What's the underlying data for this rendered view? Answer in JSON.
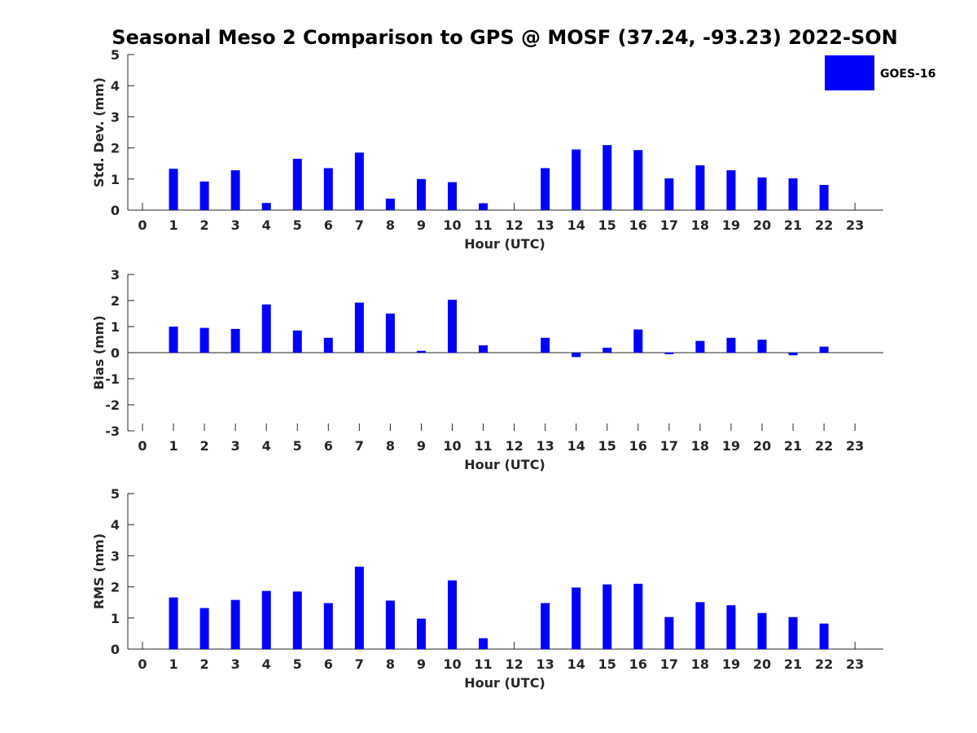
{
  "chart_data": {
    "type": "bar",
    "title": "Seasonal Meso 2 Comparison to GPS @ MOSF (37.24, -93.23) 2022-SON",
    "legend": {
      "label": "GOES-16",
      "color": "#0000ff",
      "placement": "top-right"
    },
    "categories": [
      "0",
      "1",
      "2",
      "3",
      "4",
      "5",
      "6",
      "7",
      "8",
      "9",
      "10",
      "11",
      "12",
      "13",
      "14",
      "15",
      "16",
      "17",
      "18",
      "19",
      "20",
      "21",
      "22",
      "23"
    ],
    "panels": [
      {
        "name": "std-dev",
        "ylabel": "Std. Dev. (mm)",
        "xlabel": "Hour (UTC)",
        "ylim": [
          0,
          5
        ],
        "yticks": [
          0,
          1,
          2,
          3,
          4,
          5
        ],
        "values": [
          null,
          1.33,
          0.92,
          1.28,
          0.23,
          1.65,
          1.35,
          1.85,
          0.37,
          1.0,
          0.9,
          0.22,
          null,
          1.35,
          1.95,
          2.09,
          1.93,
          1.02,
          1.44,
          1.28,
          1.05,
          1.02,
          0.81,
          null
        ]
      },
      {
        "name": "bias",
        "ylabel": "Bias (mm)",
        "xlabel": "Hour (UTC)",
        "ylim": [
          -3,
          3
        ],
        "yticks": [
          -3,
          -2,
          -1,
          0,
          1,
          2,
          3
        ],
        "values": [
          null,
          1.0,
          0.95,
          0.91,
          1.85,
          0.85,
          0.57,
          1.92,
          1.5,
          0.07,
          2.03,
          0.28,
          null,
          0.57,
          -0.17,
          0.19,
          0.89,
          -0.06,
          0.45,
          0.57,
          0.5,
          -0.1,
          0.23,
          null
        ]
      },
      {
        "name": "rms",
        "ylabel": "RMS (mm)",
        "xlabel": "Hour (UTC)",
        "ylim": [
          0,
          5
        ],
        "yticks": [
          0,
          1,
          2,
          3,
          4,
          5
        ],
        "values": [
          null,
          1.66,
          1.32,
          1.58,
          1.87,
          1.85,
          1.48,
          2.65,
          1.56,
          0.98,
          2.21,
          0.35,
          null,
          1.48,
          1.98,
          2.08,
          2.1,
          1.03,
          1.51,
          1.41,
          1.16,
          1.03,
          0.82,
          null
        ]
      }
    ]
  }
}
